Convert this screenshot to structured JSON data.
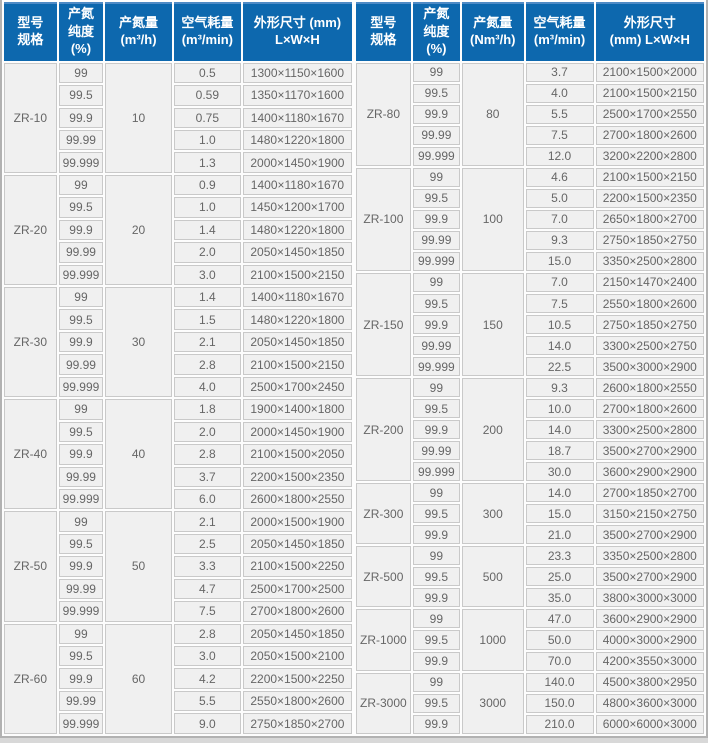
{
  "accent_colors": {
    "header_bg": "#0d68ae",
    "header_top_line": "#4d8ac5",
    "header_text": "#ffffff",
    "cell_bg": "#f0f0f0",
    "cell_border": "#c9c9c9",
    "cell_text": "#666666",
    "frame_border": "#b2b2b2"
  },
  "left_table": {
    "headers": {
      "model": {
        "line1": "型号",
        "line2": "规格"
      },
      "purity": {
        "line1": "产氮",
        "line2": "纯度",
        "line3": "(%)"
      },
      "output": {
        "line1": "产氮量",
        "line2": "(m³/h)"
      },
      "air": {
        "line1": "空气耗量",
        "line2": "(m³/min)"
      },
      "dims": {
        "line1": "外形尺寸  (mm)",
        "line2": "L×W×H"
      }
    },
    "groups": [
      {
        "model": "ZR-10",
        "output": "10",
        "rows": [
          [
            "99",
            "0.5",
            "1300×1150×1600"
          ],
          [
            "99.5",
            "0.59",
            "1350×1170×1600"
          ],
          [
            "99.9",
            "0.75",
            "1400×1180×1670"
          ],
          [
            "99.99",
            "1.0",
            "1480×1220×1800"
          ],
          [
            "99.999",
            "1.3",
            "2000×1450×1900"
          ]
        ]
      },
      {
        "model": "ZR-20",
        "output": "20",
        "rows": [
          [
            "99",
            "0.9",
            "1400×1180×1670"
          ],
          [
            "99.5",
            "1.0",
            "1450×1200×1700"
          ],
          [
            "99.9",
            "1.4",
            "1480×1220×1800"
          ],
          [
            "99.99",
            "2.0",
            "2050×1450×1850"
          ],
          [
            "99.999",
            "3.0",
            "2100×1500×2150"
          ]
        ]
      },
      {
        "model": "ZR-30",
        "output": "30",
        "rows": [
          [
            "99",
            "1.4",
            "1400×1180×1670"
          ],
          [
            "99.5",
            "1.5",
            "1480×1220×1800"
          ],
          [
            "99.9",
            "2.1",
            "2050×1450×1850"
          ],
          [
            "99.99",
            "2.8",
            "2100×1500×2150"
          ],
          [
            "99.999",
            "4.0",
            "2500×1700×2450"
          ]
        ]
      },
      {
        "model": "ZR-40",
        "output": "40",
        "rows": [
          [
            "99",
            "1.8",
            "1900×1400×1800"
          ],
          [
            "99.5",
            "2.0",
            "2000×1450×1900"
          ],
          [
            "99.9",
            "2.8",
            "2100×1500×2050"
          ],
          [
            "99.99",
            "3.7",
            "2200×1500×2350"
          ],
          [
            "99.999",
            "6.0",
            "2600×1800×2550"
          ]
        ]
      },
      {
        "model": "ZR-50",
        "output": "50",
        "rows": [
          [
            "99",
            "2.1",
            "2000×1500×1900"
          ],
          [
            "99.5",
            "2.5",
            "2050×1450×1850"
          ],
          [
            "99.9",
            "3.3",
            "2100×1500×2250"
          ],
          [
            "99.99",
            "4.7",
            "2500×1700×2500"
          ],
          [
            "99.999",
            "7.5",
            "2700×1800×2600"
          ]
        ]
      },
      {
        "model": "ZR-60",
        "output": "60",
        "rows": [
          [
            "99",
            "2.8",
            "2050×1450×1850"
          ],
          [
            "99.5",
            "3.0",
            "2050×1500×2100"
          ],
          [
            "99.9",
            "4.2",
            "2200×1500×2250"
          ],
          [
            "99.99",
            "5.5",
            "2550×1800×2600"
          ],
          [
            "99.999",
            "9.0",
            "2750×1850×2700"
          ]
        ]
      }
    ]
  },
  "right_table": {
    "headers": {
      "model": {
        "line1": "型号",
        "line2": "规格"
      },
      "purity": {
        "line1": "产氮",
        "line2": "纯度",
        "line3": "(%)"
      },
      "output": {
        "line1": "产氮量",
        "line2": "(Nm³/h)"
      },
      "air": {
        "line1": "空气耗量",
        "line2": "(m³/min)"
      },
      "dims": {
        "line1": "外形尺寸",
        "line2": "(mm)  L×W×H"
      }
    },
    "groups": [
      {
        "model": "ZR-80",
        "output": "80",
        "rows": [
          [
            "99",
            "3.7",
            "2100×1500×2000"
          ],
          [
            "99.5",
            "4.0",
            "2100×1500×2150"
          ],
          [
            "99.9",
            "5.5",
            "2500×1700×2550"
          ],
          [
            "99.99",
            "7.5",
            "2700×1800×2600"
          ],
          [
            "99.999",
            "12.0",
            "3200×2200×2800"
          ]
        ]
      },
      {
        "model": "ZR-100",
        "output": "100",
        "rows": [
          [
            "99",
            "4.6",
            "2100×1500×2150"
          ],
          [
            "99.5",
            "5.0",
            "2200×1500×2350"
          ],
          [
            "99.9",
            "7.0",
            "2650×1800×2700"
          ],
          [
            "99.99",
            "9.3",
            "2750×1850×2750"
          ],
          [
            "99.999",
            "15.0",
            "3350×2500×2800"
          ]
        ]
      },
      {
        "model": "ZR-150",
        "output": "150",
        "rows": [
          [
            "99",
            "7.0",
            "2150×1470×2400"
          ],
          [
            "99.5",
            "7.5",
            "2550×1800×2600"
          ],
          [
            "99.9",
            "10.5",
            "2750×1850×2750"
          ],
          [
            "99.99",
            "14.0",
            "3300×2500×2750"
          ],
          [
            "99.999",
            "22.5",
            "3500×3000×2900"
          ]
        ]
      },
      {
        "model": "ZR-200",
        "output": "200",
        "rows": [
          [
            "99",
            "9.3",
            "2600×1800×2550"
          ],
          [
            "99.5",
            "10.0",
            "2700×1800×2600"
          ],
          [
            "99.9",
            "14.0",
            "3300×2500×2800"
          ],
          [
            "99.99",
            "18.7",
            "3500×2700×2900"
          ],
          [
            "99.999",
            "30.0",
            "3600×2900×2900"
          ]
        ]
      },
      {
        "model": "ZR-300",
        "output": "300",
        "rows": [
          [
            "99",
            "14.0",
            "2700×1850×2700"
          ],
          [
            "99.5",
            "15.0",
            "3150×2150×2750"
          ],
          [
            "99.9",
            "21.0",
            "3500×2700×2900"
          ]
        ]
      },
      {
        "model": "ZR-500",
        "output": "500",
        "rows": [
          [
            "99",
            "23.3",
            "3350×2500×2800"
          ],
          [
            "99.5",
            "25.0",
            "3500×2700×2900"
          ],
          [
            "99.9",
            "35.0",
            "3800×3000×3000"
          ]
        ]
      },
      {
        "model": "ZR-1000",
        "output": "1000",
        "rows": [
          [
            "99",
            "47.0",
            "3600×2900×2900"
          ],
          [
            "99.5",
            "50.0",
            "4000×3000×2900"
          ],
          [
            "99.9",
            "70.0",
            "4200×3550×3000"
          ]
        ]
      },
      {
        "model": "ZR-3000",
        "output": "3000",
        "rows": [
          [
            "99",
            "140.0",
            "4500×3800×2950"
          ],
          [
            "99.5",
            "150.0",
            "4800×3600×3000"
          ],
          [
            "99.9",
            "210.0",
            "6000×6000×3000"
          ]
        ]
      }
    ]
  }
}
